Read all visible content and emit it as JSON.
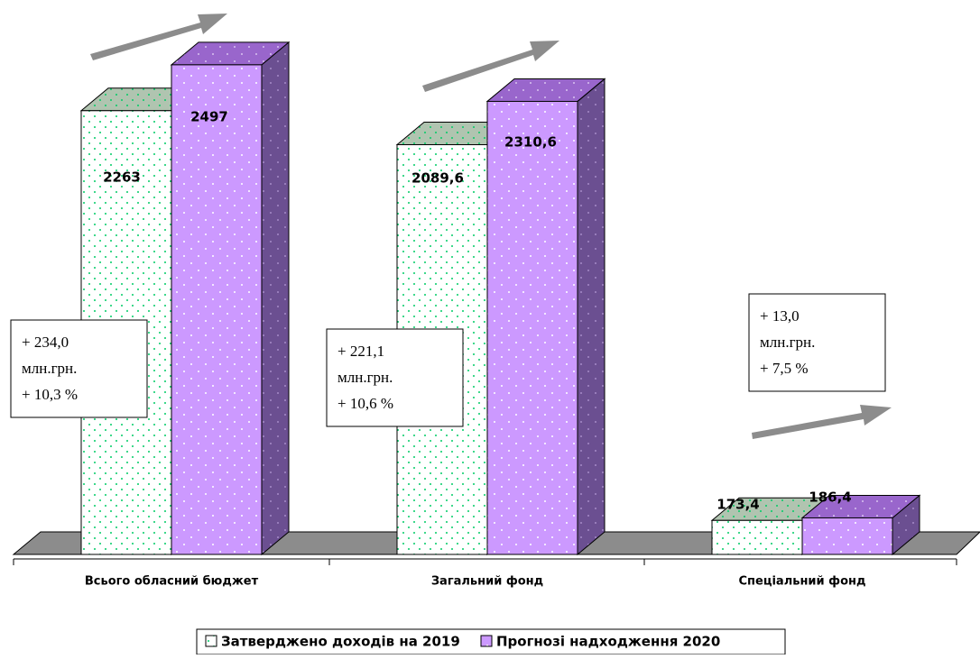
{
  "chart_data": {
    "type": "bar3d",
    "categories": [
      "Всього обласний бюджет",
      "Загальний фонд",
      "Спеціальний фонд"
    ],
    "series": [
      {
        "name": "Затверджено доходів на 2019",
        "color": "#00cc66",
        "values": [
          2263,
          2089.6,
          173.4
        ],
        "value_labels": [
          "2263",
          "2089,6",
          "173,4"
        ]
      },
      {
        "name": "Прогнозі надходження 2020",
        "color": "#cc99ff",
        "values": [
          2497,
          2310.6,
          186.4
        ],
        "value_labels": [
          "2497",
          "2310,6",
          "186,4"
        ]
      }
    ],
    "annotations": [
      [
        "+ 234,0",
        "млн.грн.",
        "+ 10,3 %"
      ],
      [
        "+ 221,1",
        "млн.грн.",
        "+ 10,6 %"
      ],
      [
        "+ 13,0",
        "млн.грн.",
        "+ 7,5 %"
      ]
    ],
    "legend": "bottom"
  }
}
